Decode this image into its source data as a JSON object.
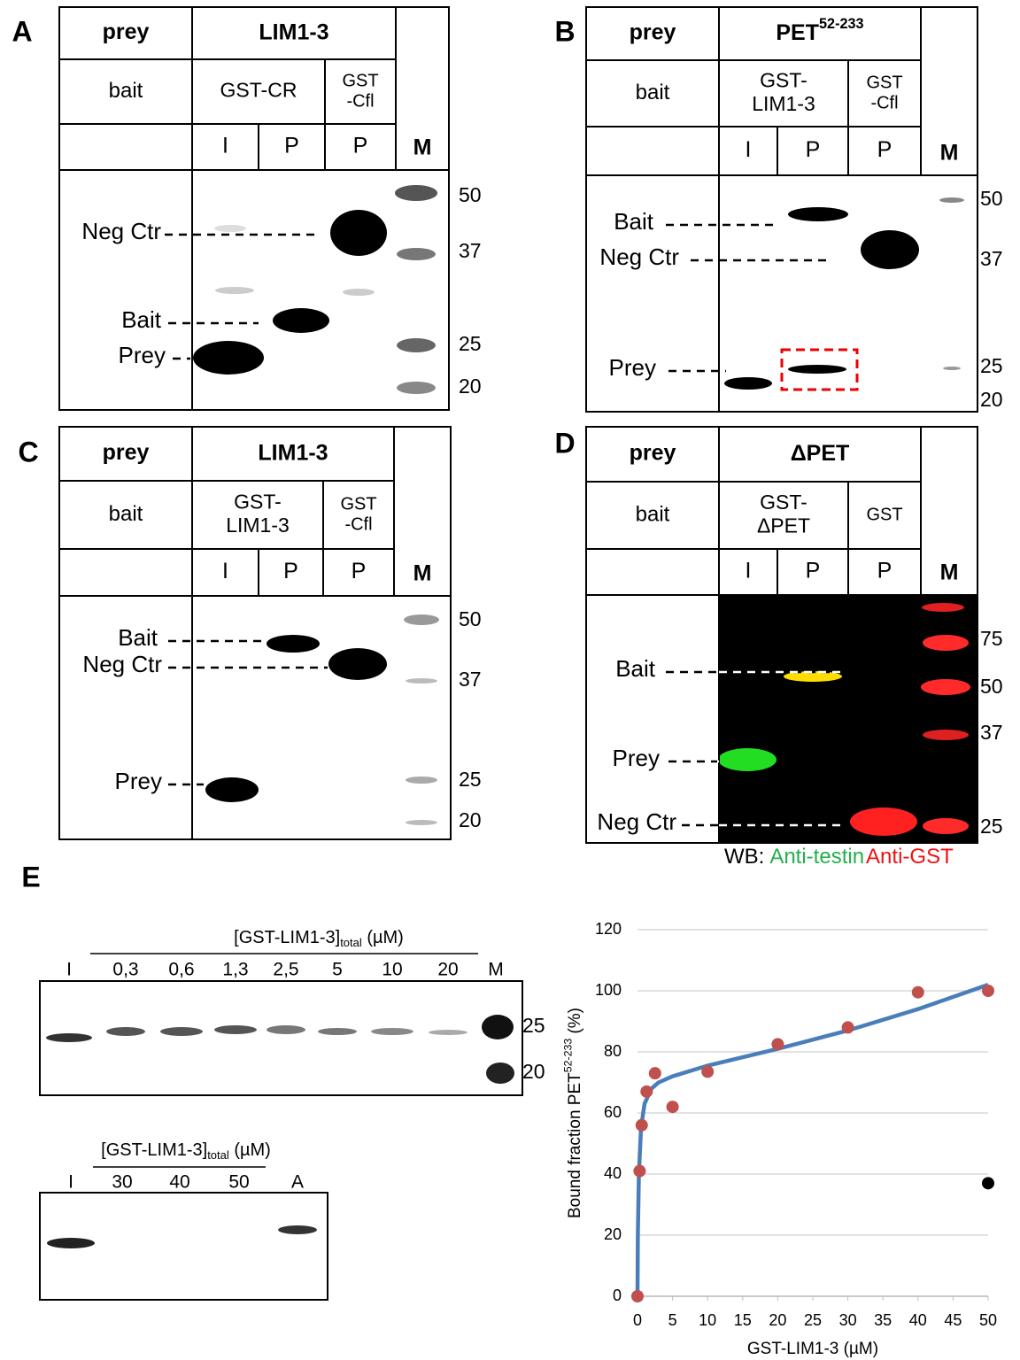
{
  "panels": [
    {
      "letter": "A",
      "prey_label": "prey",
      "prey": {
        "text": "LIM1-3"
      },
      "bait_label": "bait",
      "baits": [
        [
          "GST-CR"
        ],
        [
          "GST",
          "-Cfl"
        ]
      ],
      "lanes": [
        "I",
        "P",
        "P"
      ],
      "marker_lane": "M",
      "band_labels": [
        "Neg Ctr",
        "Bait",
        "Prey"
      ],
      "markers": [
        50,
        37,
        25,
        20
      ]
    },
    {
      "letter": "B",
      "prey_label": "prey",
      "prey": {
        "text": "PET",
        "sup": "52-233"
      },
      "bait_label": "bait",
      "baits": [
        [
          "GST-",
          "LIM1-3"
        ],
        [
          "GST",
          "-Cfl"
        ]
      ],
      "lanes": [
        "I",
        "P",
        "P"
      ],
      "marker_lane": "M",
      "band_labels": [
        "Bait",
        "Neg Ctr",
        "Prey"
      ],
      "markers": [
        50,
        37,
        25,
        20
      ]
    },
    {
      "letter": "C",
      "prey_label": "prey",
      "prey": {
        "text": "LIM1-3"
      },
      "bait_label": "bait",
      "baits": [
        [
          "GST-",
          "LIM1-3"
        ],
        [
          "GST",
          "-Cfl"
        ]
      ],
      "lanes": [
        "I",
        "P",
        "P"
      ],
      "marker_lane": "M",
      "band_labels": [
        "Bait",
        "Neg Ctr",
        "Prey"
      ],
      "markers": [
        50,
        37,
        25,
        20
      ]
    },
    {
      "letter": "D",
      "prey_label": "prey",
      "prey": {
        "text": "ΔPET"
      },
      "bait_label": "bait",
      "baits": [
        [
          "GST-",
          "ΔPET"
        ],
        [
          "GST"
        ]
      ],
      "lanes": [
        "I",
        "P",
        "P"
      ],
      "marker_lane": "M",
      "band_labels": [
        "Bait",
        "Prey",
        "Neg Ctr"
      ],
      "markers": [
        75,
        50,
        37,
        25
      ],
      "blot_legend": {
        "prefix": "WB:",
        "items": [
          {
            "text": "Anti-testin",
            "color": "#22b14c"
          },
          {
            "text": "Anti-GST",
            "color": "#ee1111"
          }
        ]
      }
    }
  ],
  "panel_e": {
    "letter": "E",
    "gels": [
      {
        "header": {
          "text": "[GST-LIM1-3]",
          "sub": "total",
          "after": " (µM)"
        },
        "lanes": [
          "I",
          "0,3",
          "0,6",
          "1,3",
          "2,5",
          "5",
          "10",
          "20",
          "M"
        ],
        "markers": [
          25,
          20
        ]
      },
      {
        "header": {
          "text": "[GST-LIM1-3]",
          "sub": "total",
          "after": " (µM)"
        },
        "lanes": [
          "I",
          "30",
          "40",
          "50",
          "A"
        ]
      }
    ]
  },
  "chart_data": {
    "type": "scatter",
    "xlabel": "GST-LIM1-3 (µM)",
    "ylabel": {
      "text": "Bound fraction PET",
      "sup": "52-233",
      "after": " (%)"
    },
    "xlim": [
      0,
      50
    ],
    "ylim": [
      0,
      120
    ],
    "xticks": [
      0,
      5,
      10,
      15,
      20,
      25,
      30,
      35,
      40,
      45,
      50
    ],
    "yticks": [
      0,
      20,
      40,
      60,
      80,
      100,
      120
    ],
    "grid": true,
    "series": [
      {
        "color": "#c0504d",
        "x": [
          0,
          0.3,
          0.6,
          1.3,
          2.5,
          5,
          10,
          20,
          30,
          40,
          50
        ],
        "values": [
          0,
          41,
          56,
          67,
          73,
          62,
          73.5,
          82.5,
          88,
          99.5,
          100
        ]
      },
      {
        "color": "#000000",
        "x": [
          50
        ],
        "values": [
          37
        ]
      },
      {
        "type": "line",
        "color": "#4a7ebb",
        "x": [
          0,
          0.05,
          0.2,
          0.5,
          1,
          2,
          3,
          5,
          10,
          20,
          30,
          40,
          50
        ],
        "values": [
          0,
          20,
          40,
          55,
          63,
          68,
          70,
          72,
          75.5,
          81,
          87,
          94,
          102
        ]
      }
    ]
  }
}
